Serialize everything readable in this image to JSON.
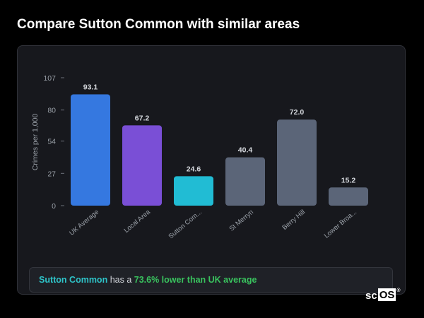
{
  "header": {
    "title": "Compare Sutton Common with similar areas"
  },
  "chart_data": {
    "type": "bar",
    "ylabel": "Crimes per 1,000",
    "xlabel": "",
    "ylim": [
      0,
      107
    ],
    "yticks": [
      0,
      27,
      54,
      80,
      107
    ],
    "grid": false,
    "categories": [
      "UK Average",
      "Local Area",
      "Sutton Com...",
      "St Merryn",
      "Berry Hill",
      "Lower Broa..."
    ],
    "values": [
      93.1,
      67.2,
      24.6,
      40.4,
      72.0,
      15.2
    ],
    "value_labels": [
      "93.1",
      "67.2",
      "24.6",
      "40.4",
      "72.0",
      "15.2"
    ],
    "colors": [
      "#3578e0",
      "#7a4fd6",
      "#21bcd4",
      "#5b6578",
      "#5b6578",
      "#5b6578"
    ]
  },
  "summary": {
    "area": "Sutton Common",
    "text_before": " has a ",
    "highlight": "73.6% lower than UK average"
  },
  "logo": {
    "sc": "sc",
    "os": "OS",
    "reg": "®"
  }
}
